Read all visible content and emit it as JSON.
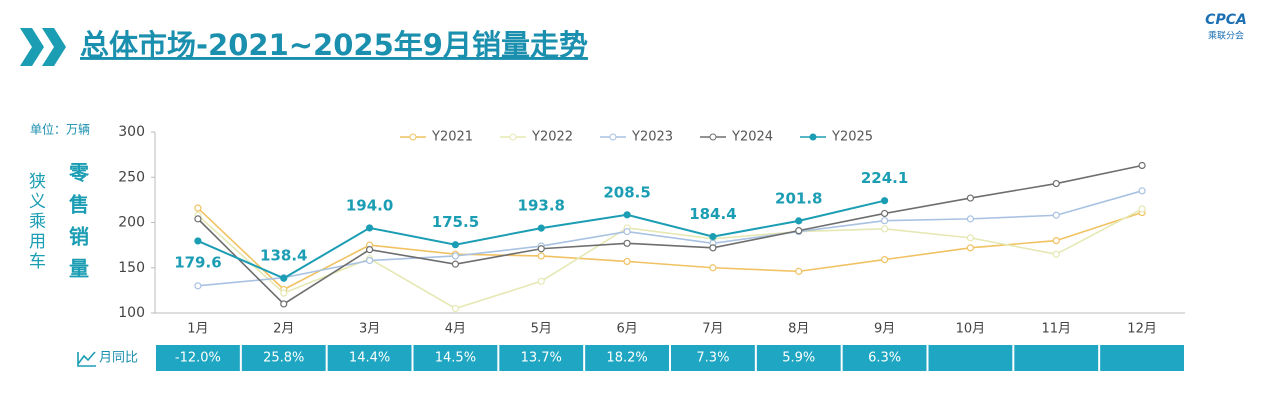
{
  "chart_data": {
    "type": "line",
    "title": "总体市场-2021~2025年9月销量走势",
    "logo": "CPCA",
    "logo_sub": "乘联分会",
    "unit_label": "单位：万辆",
    "side_label_1": "狭义乘用车",
    "side_label_2": "零售销量",
    "categories": [
      "1月",
      "2月",
      "3月",
      "4月",
      "5月",
      "6月",
      "7月",
      "8月",
      "9月",
      "10月",
      "11月",
      "12月"
    ],
    "ylim": [
      100,
      300
    ],
    "yticks": [
      100,
      150,
      200,
      250,
      300
    ],
    "grid": false,
    "legend": "top",
    "series": [
      {
        "name": "Y2021",
        "color": "#f0c262",
        "values": [
          216,
          126,
          175,
          165,
          163,
          157,
          150,
          146,
          159,
          172,
          180,
          211
        ]
      },
      {
        "name": "Y2022",
        "color": "#e6e8b4",
        "values": [
          208,
          122,
          160,
          105,
          135,
          194,
          182,
          190,
          193,
          183,
          165,
          215
        ]
      },
      {
        "name": "Y2023",
        "color": "#a9c2e2",
        "values": [
          130,
          139,
          158,
          163,
          174,
          190,
          177,
          190,
          202,
          204,
          208,
          235
        ]
      },
      {
        "name": "Y2024",
        "color": "#6e6e6e",
        "values": [
          204,
          110,
          170,
          154,
          171,
          177,
          172,
          191,
          210,
          227,
          243,
          263
        ]
      },
      {
        "name": "Y2025",
        "color": "#1b9db3",
        "values": [
          179.6,
          138.4,
          194.0,
          175.5,
          193.8,
          208.5,
          184.4,
          201.8,
          224.1,
          null,
          null,
          null
        ],
        "value_labels": [
          "179.6",
          "138.4",
          "194.0",
          "175.5",
          "193.8",
          "208.5",
          "184.4",
          "201.8",
          "224.1",
          null,
          null,
          null
        ]
      }
    ],
    "mom_row": {
      "label": "月同比",
      "values": [
        "-12.0%",
        "25.8%",
        "14.4%",
        "14.5%",
        "13.7%",
        "18.2%",
        "7.3%",
        "5.9%",
        "6.3%",
        null,
        null,
        null
      ]
    }
  }
}
